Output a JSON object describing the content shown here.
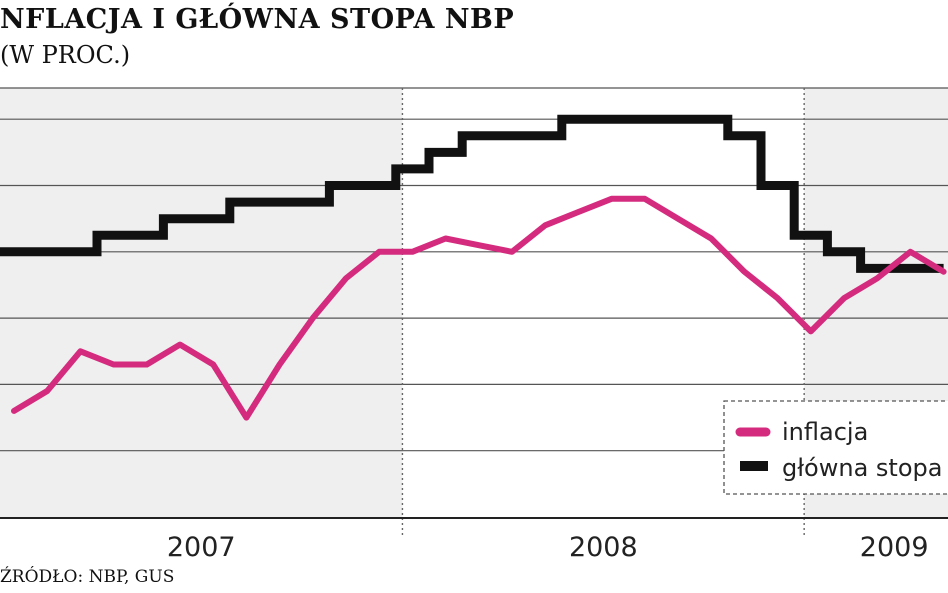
{
  "title": "NFLACJA I GŁÓWNA STOPA NBP",
  "subtitle": "(W PROC.)",
  "source": "ŹRÓDŁO: NBP, GUS",
  "chart_data": {
    "type": "line",
    "title": "INFLACJA I GŁÓWNA STOPA NBP",
    "subtitle": "(W PROC.)",
    "x_unit": "month index (0 = Jan 2007)",
    "year_labels": [
      "2007",
      "2008",
      "2009"
    ],
    "ylim": [
      0,
      6
    ],
    "grid": true,
    "legend_position": "bottom-right",
    "colors": {
      "inflacja": "#d42b7e",
      "stopa": "#111111",
      "shade": "#efefef",
      "grid": "#555555"
    },
    "series": [
      {
        "name": "inflacja",
        "x": [
          0,
          1,
          2,
          3,
          4,
          5,
          6,
          7,
          8,
          9,
          10,
          11,
          12,
          13,
          14,
          15,
          16,
          17,
          18,
          19,
          20,
          21,
          22,
          23,
          24,
          25,
          26,
          27,
          28
        ],
        "values": [
          1.6,
          1.9,
          2.5,
          2.3,
          2.3,
          2.6,
          2.3,
          1.5,
          2.3,
          3.0,
          3.6,
          4.0,
          4.0,
          4.2,
          4.1,
          4.0,
          4.4,
          4.6,
          4.8,
          4.8,
          4.5,
          4.2,
          3.7,
          3.3,
          2.8,
          3.3,
          3.6,
          4.0,
          3.7
        ]
      },
      {
        "name": "główna stopa NBP",
        "step_points": [
          [
            -0.5,
            4.0
          ],
          [
            2.5,
            4.0
          ],
          [
            2.5,
            4.25
          ],
          [
            4.5,
            4.25
          ],
          [
            4.5,
            4.5
          ],
          [
            6.5,
            4.5
          ],
          [
            6.5,
            4.75
          ],
          [
            9.5,
            4.75
          ],
          [
            9.5,
            5.0
          ],
          [
            11.5,
            5.0
          ],
          [
            11.5,
            5.25
          ],
          [
            12.5,
            5.25
          ],
          [
            12.5,
            5.5
          ],
          [
            13.5,
            5.5
          ],
          [
            13.5,
            5.75
          ],
          [
            16.5,
            5.75
          ],
          [
            16.5,
            6.0
          ],
          [
            21.5,
            6.0
          ],
          [
            21.5,
            5.75
          ],
          [
            22.5,
            5.75
          ],
          [
            22.5,
            5.0
          ],
          [
            23.5,
            5.0
          ],
          [
            23.5,
            4.25
          ],
          [
            24.5,
            4.25
          ],
          [
            24.5,
            4.0
          ],
          [
            25.5,
            4.0
          ],
          [
            25.5,
            3.75
          ],
          [
            28.0,
            3.75
          ]
        ]
      }
    ]
  }
}
